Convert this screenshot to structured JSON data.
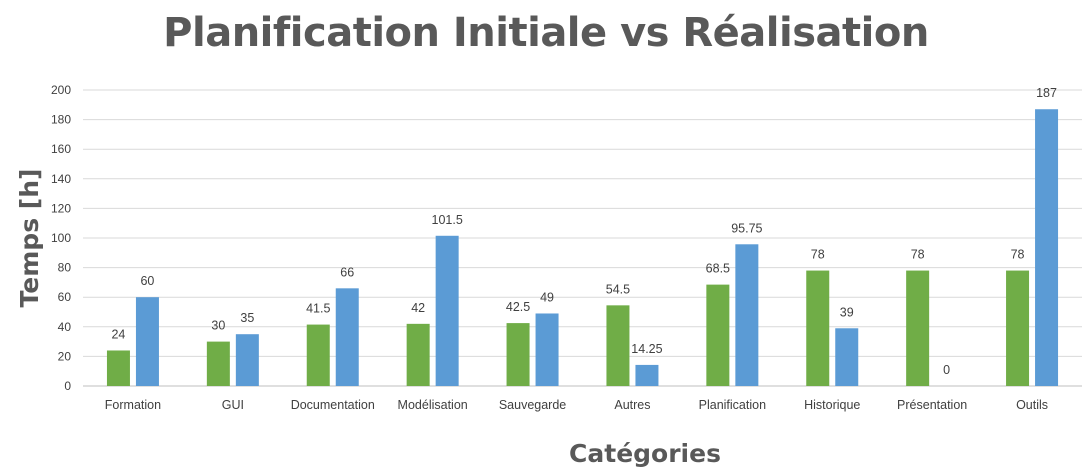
{
  "chart_data": {
    "type": "bar",
    "title": "Planification Initiale vs Réalisation",
    "xlabel": "Catégories",
    "ylabel": "Temps [h]",
    "ylim": [
      0,
      200
    ],
    "yticks": [
      0,
      20,
      40,
      60,
      80,
      100,
      120,
      140,
      160,
      180,
      200
    ],
    "grid": true,
    "legend": "none",
    "categories": [
      "Formation",
      "GUI",
      "Documentation",
      "Modélisation",
      "Sauvegarde",
      "Autres",
      "Planification",
      "Historique",
      "Présentation",
      "Outils"
    ],
    "series": [
      {
        "color": "#70ad47",
        "values": [
          24,
          30,
          41.5,
          42,
          42.5,
          54.5,
          68.5,
          78,
          78,
          78
        ]
      },
      {
        "color": "#5b9bd5",
        "values": [
          60,
          35,
          66,
          101.5,
          49,
          14.25,
          95.75,
          39,
          0,
          187
        ]
      }
    ]
  }
}
